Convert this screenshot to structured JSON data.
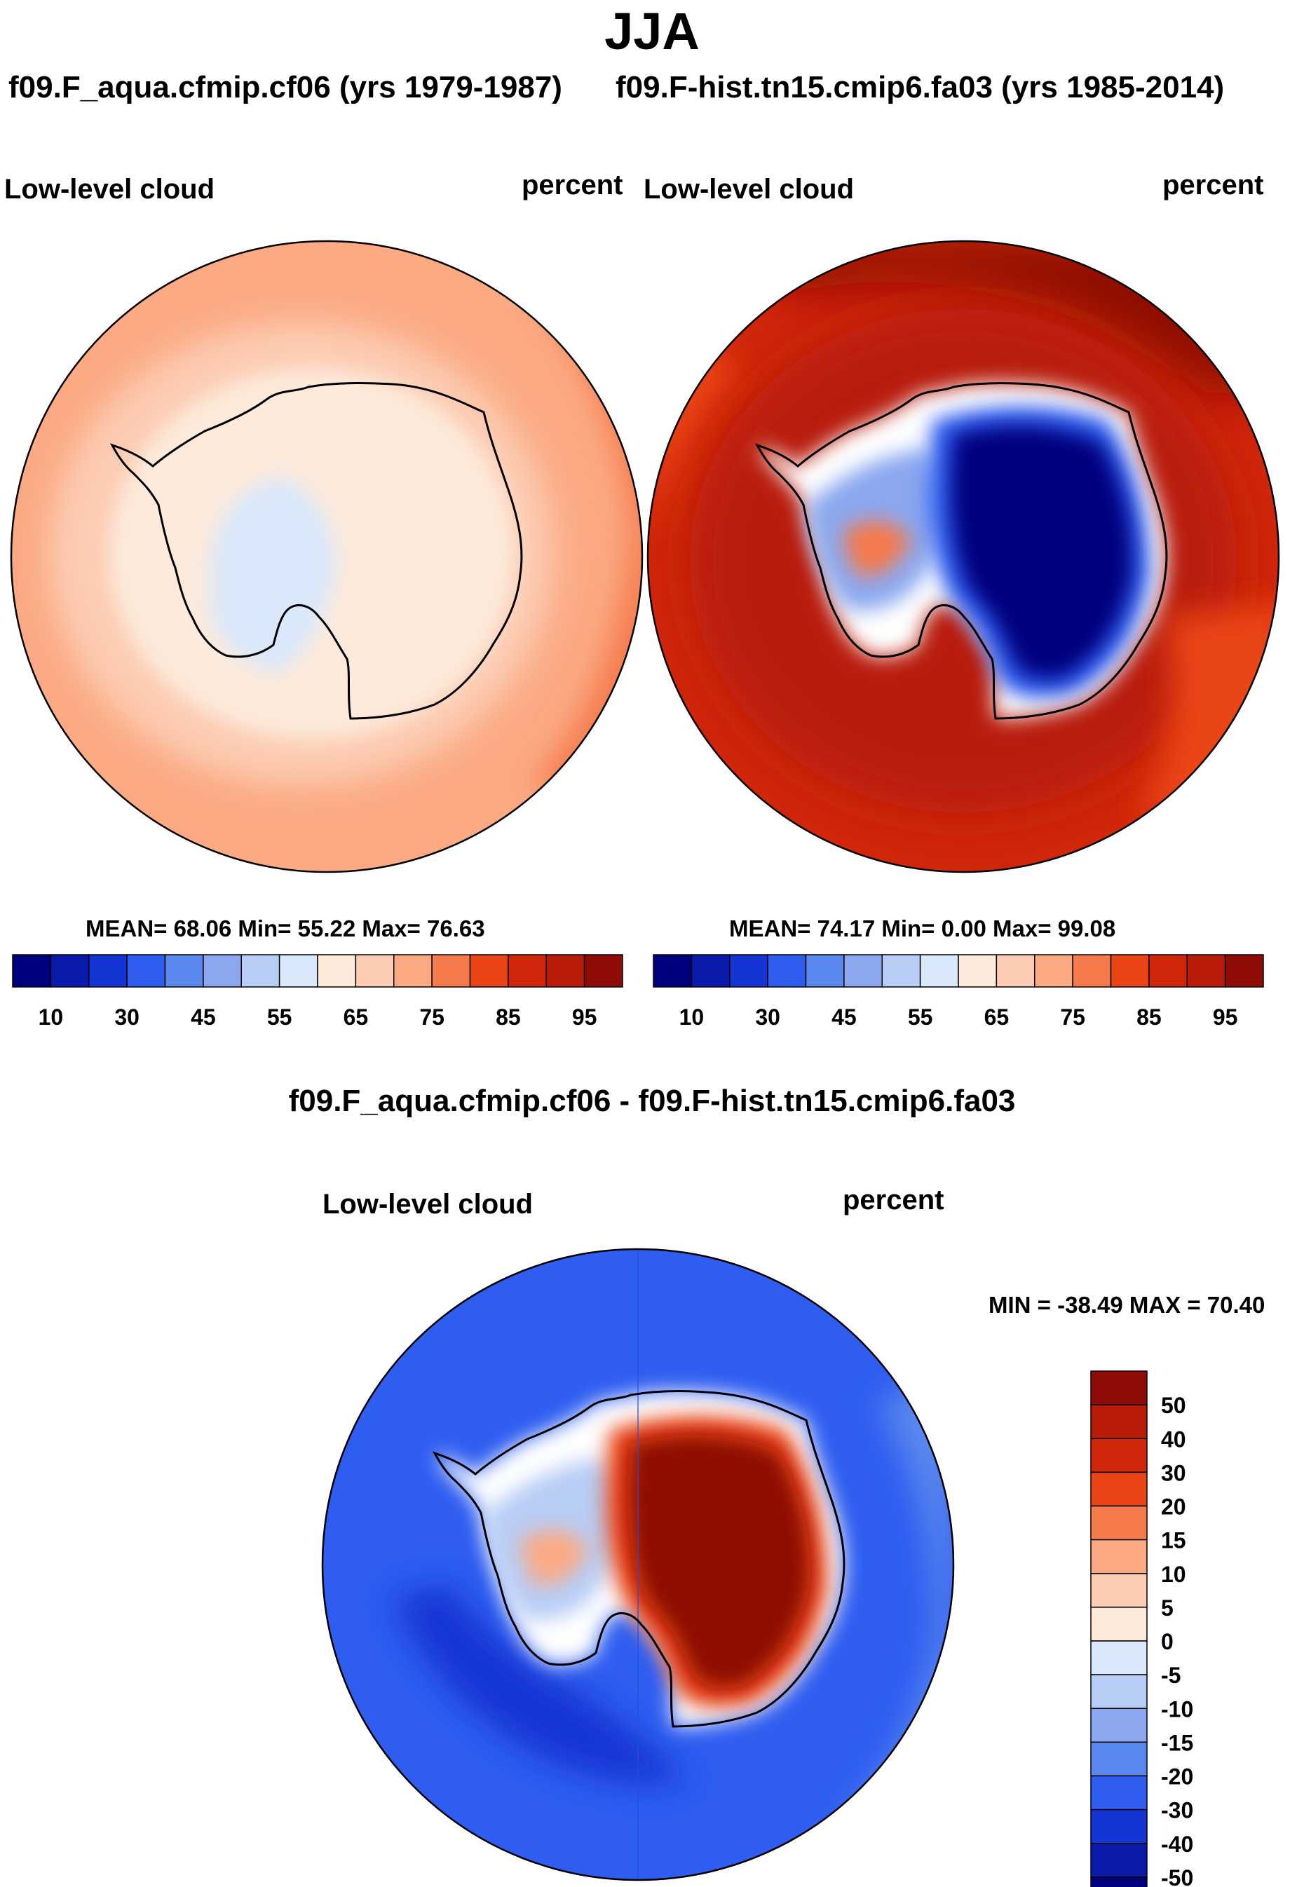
{
  "main_title": "JJA",
  "panels": [
    {
      "id": "left",
      "case_title": "f09.F_aqua.cfmip.cf06 (yrs 1979-1987)",
      "variable_label": "Low-level cloud",
      "units_label": "percent",
      "stats_text": "MEAN=  68.06  Min=  55.22  Max=  76.63"
    },
    {
      "id": "right",
      "case_title": "f09.F-hist.tn15.cmip6.fa03 (yrs 1985-2014)",
      "variable_label": "Low-level cloud",
      "units_label": "percent",
      "stats_text": "MEAN=  74.17  Min=    0.00  Max=  99.08"
    },
    {
      "id": "diff",
      "case_title": "f09.F_aqua.cfmip.cf06 - f09.F-hist.tn15.cmip6.fa03",
      "variable_label": "Low-level cloud",
      "units_label": "percent",
      "stats_text": "MIN = -38.49 MAX =  70.40"
    }
  ],
  "chart_data": [
    {
      "type": "heatmap",
      "projection": "south-polar stereographic",
      "title": "f09.F_aqua.cfmip.cf06 (yrs 1979-1987)",
      "variable": "Low-level cloud",
      "units": "percent",
      "stats": {
        "mean": 68.06,
        "min": 55.22,
        "max": 76.63
      },
      "colorbar": {
        "orientation": "horizontal",
        "levels": [
          5,
          10,
          20,
          30,
          40,
          45,
          50,
          55,
          60,
          65,
          70,
          75,
          80,
          85,
          90,
          95
        ],
        "tick_labels": [
          "10",
          "30",
          "45",
          "55",
          "65",
          "75",
          "85",
          "95"
        ]
      }
    },
    {
      "type": "heatmap",
      "projection": "south-polar stereographic",
      "title": "f09.F-hist.tn15.cmip6.fa03 (yrs 1985-2014)",
      "variable": "Low-level cloud",
      "units": "percent",
      "stats": {
        "mean": 74.17,
        "min": 0.0,
        "max": 99.08
      },
      "colorbar": {
        "orientation": "horizontal",
        "levels": [
          5,
          10,
          20,
          30,
          40,
          45,
          50,
          55,
          60,
          65,
          70,
          75,
          80,
          85,
          90,
          95
        ],
        "tick_labels": [
          "10",
          "30",
          "45",
          "55",
          "65",
          "75",
          "85",
          "95"
        ]
      }
    },
    {
      "type": "heatmap",
      "projection": "south-polar stereographic",
      "title": "f09.F_aqua.cfmip.cf06 - f09.F-hist.tn15.cmip6.fa03",
      "variable": "Low-level cloud",
      "units": "percent",
      "stats": {
        "min": -38.49,
        "max": 70.4
      },
      "colorbar": {
        "orientation": "vertical",
        "tick_labels": [
          "50",
          "40",
          "30",
          "20",
          "15",
          "10",
          "5",
          "0",
          "-5",
          "-10",
          "-15",
          "-20",
          "-30",
          "-40",
          "-50"
        ]
      }
    }
  ],
  "colors": {
    "abs_palette": [
      "#00007e",
      "#0a1aaa",
      "#1434d4",
      "#2e5df0",
      "#5a88ee",
      "#8ba8ef",
      "#b8cdf5",
      "#d9e8fb",
      "#fdeadb",
      "#fcccb2",
      "#fbaa84",
      "#f57a4c",
      "#ea4415",
      "#d0260a",
      "#b81c09",
      "#8e0b06"
    ],
    "diff_palette": [
      "#8e0b06",
      "#b81c09",
      "#d0260a",
      "#ea4415",
      "#f57a4c",
      "#fbaa84",
      "#fcccb2",
      "#fdeadb",
      "#d9e8fb",
      "#b8cdf5",
      "#8ba8ef",
      "#5a88ee",
      "#2e5df0",
      "#1434d4",
      "#0a1aaa",
      "#00007e"
    ],
    "coast": "#000000"
  }
}
